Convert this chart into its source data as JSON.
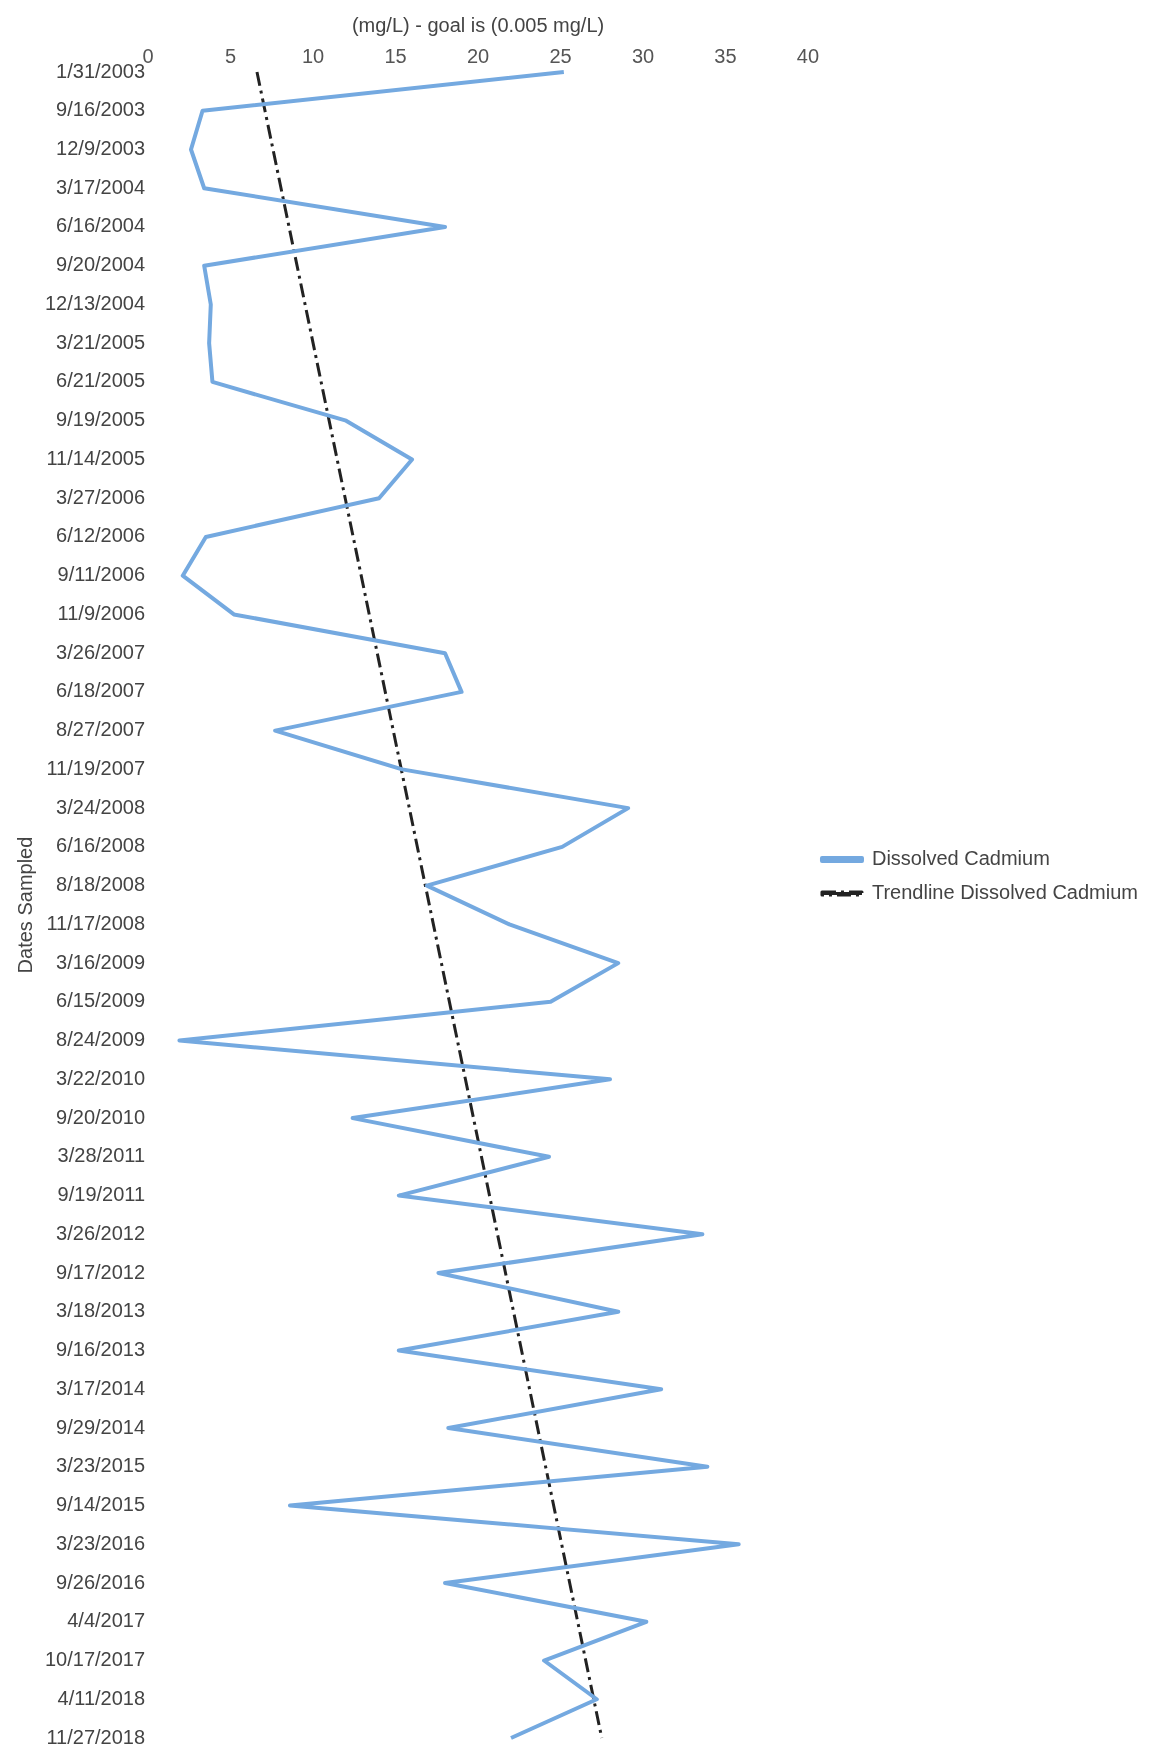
{
  "chart_data": {
    "type": "line",
    "orientation": "horizontal",
    "xlabel": "(mg/L) - goal is (0.005 mg/L)",
    "ylabel": "Dates Sampled",
    "categories": [
      "1/31/2003",
      "9/16/2003",
      "12/9/2003",
      "3/17/2004",
      "6/16/2004",
      "9/20/2004",
      "12/13/2004",
      "3/21/2005",
      "6/21/2005",
      "9/19/2005",
      "11/14/2005",
      "3/27/2006",
      "6/12/2006",
      "9/11/2006",
      "11/9/2006",
      "3/26/2007",
      "6/18/2007",
      "8/27/2007",
      "11/19/2007",
      "3/24/2008",
      "6/16/2008",
      "8/18/2008",
      "11/17/2008",
      "3/16/2009",
      "6/15/2009",
      "8/24/2009",
      "3/22/2010",
      "9/20/2010",
      "3/28/2011",
      "9/19/2011",
      "3/26/2012",
      "9/17/2012",
      "3/18/2013",
      "9/16/2013",
      "3/17/2014",
      "9/29/2014",
      "3/23/2015",
      "9/14/2015",
      "3/23/2016",
      "9/26/2016",
      "4/4/2017",
      "10/17/2017",
      "4/11/2018",
      "11/27/2018"
    ],
    "series": [
      {
        "name": "Dissolved Cadmium",
        "color": "#74a9e0",
        "line_style": "solid",
        "values": [
          25.2,
          3.3,
          2.6,
          3.4,
          18.0,
          3.4,
          3.8,
          3.7,
          3.9,
          12.0,
          16.0,
          14.0,
          3.5,
          2.1,
          5.2,
          18.0,
          19.0,
          7.7,
          15.4,
          29.1,
          25.1,
          16.9,
          21.9,
          28.5,
          24.4,
          1.9,
          28.0,
          12.4,
          24.3,
          15.2,
          33.6,
          17.6,
          28.5,
          15.2,
          31.1,
          18.2,
          33.9,
          8.6,
          35.8,
          18.0,
          30.2,
          24.0,
          27.2,
          22.0
        ]
      },
      {
        "name": "Trendline Dissolved Cadmium",
        "color": "#222222",
        "type": "line",
        "line_style": "dashed",
        "values": [
          6.6,
          null,
          null,
          null,
          null,
          null,
          null,
          null,
          null,
          null,
          null,
          null,
          null,
          null,
          null,
          null,
          null,
          null,
          null,
          null,
          null,
          null,
          null,
          null,
          null,
          null,
          null,
          null,
          null,
          null,
          null,
          null,
          null,
          null,
          null,
          null,
          null,
          null,
          null,
          null,
          null,
          null,
          null,
          27.5
        ]
      }
    ],
    "xlim": [
      0,
      40
    ],
    "xticks": [
      0,
      5,
      10,
      15,
      20,
      25,
      30,
      35,
      40
    ],
    "grid": false,
    "legend": "right",
    "marker": "none"
  }
}
